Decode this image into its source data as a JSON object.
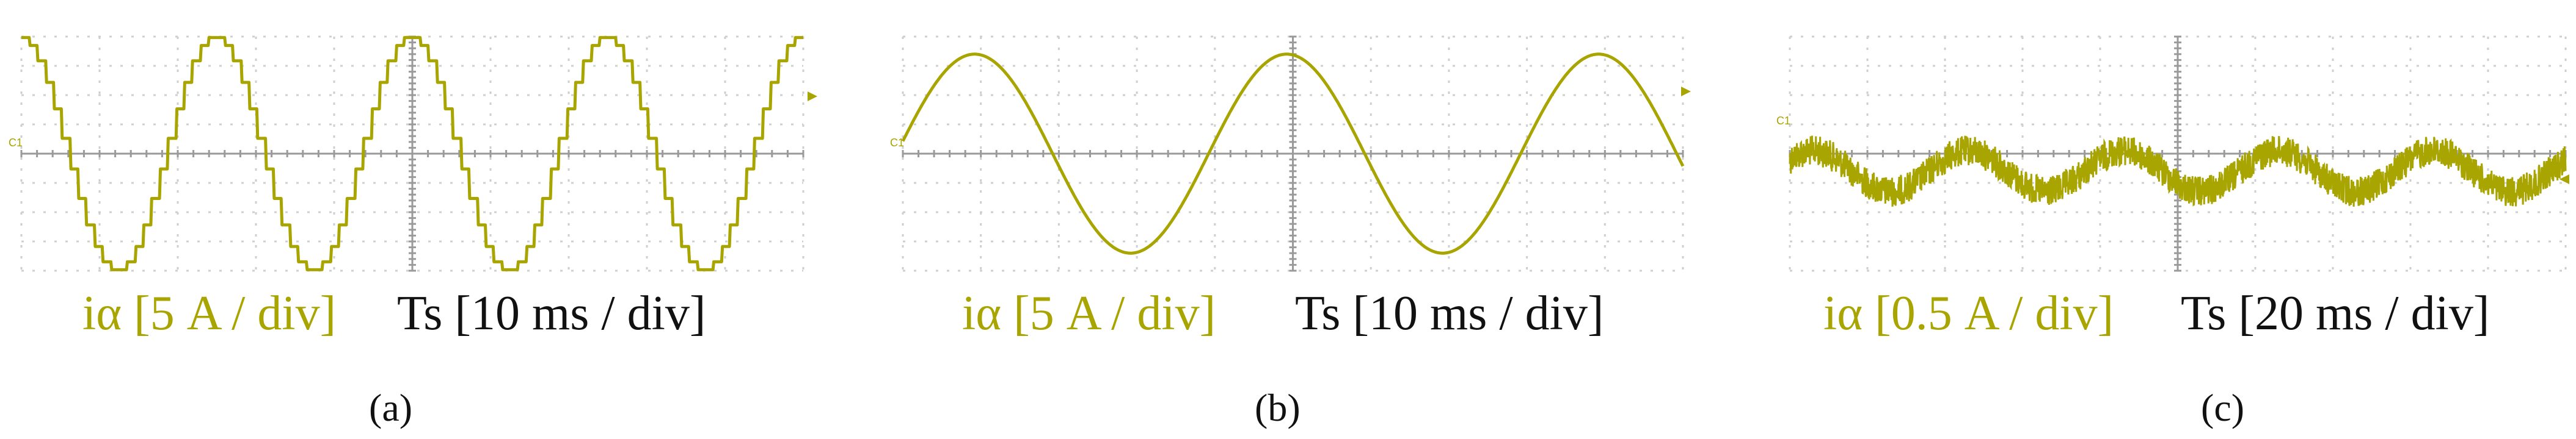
{
  "chart_data": [
    {
      "type": "line",
      "panel_label": "(a)",
      "channel_label": "C1",
      "y_label": "iα [5 A / div]",
      "x_label": "Ts [10 ms / div]",
      "waveform": "staircase-sine",
      "amplitude_div": 2.0,
      "period_div": 2.5,
      "zero_level_div": 0,
      "steps_per_period": 24,
      "divisions": {
        "x": 10,
        "y": 8
      }
    },
    {
      "type": "line",
      "panel_label": "(b)",
      "channel_label": "C1",
      "y_label": "iα [5 A / div]",
      "x_label": "Ts [10 ms / div]",
      "waveform": "sine",
      "amplitude_div": 1.7,
      "period_div": 4.0,
      "zero_level_div": 0,
      "divisions": {
        "x": 10,
        "y": 8
      }
    },
    {
      "type": "line",
      "panel_label": "(c)",
      "channel_label": "C1",
      "y_label": "iα [0.5 A / div]",
      "x_label": "Ts [20 ms / div]",
      "waveform": "noisy-sine",
      "amplitude_div": 0.35,
      "period_div": 2.0,
      "zero_level_div": -0.3,
      "divisions": {
        "x": 10,
        "y": 8
      }
    }
  ]
}
